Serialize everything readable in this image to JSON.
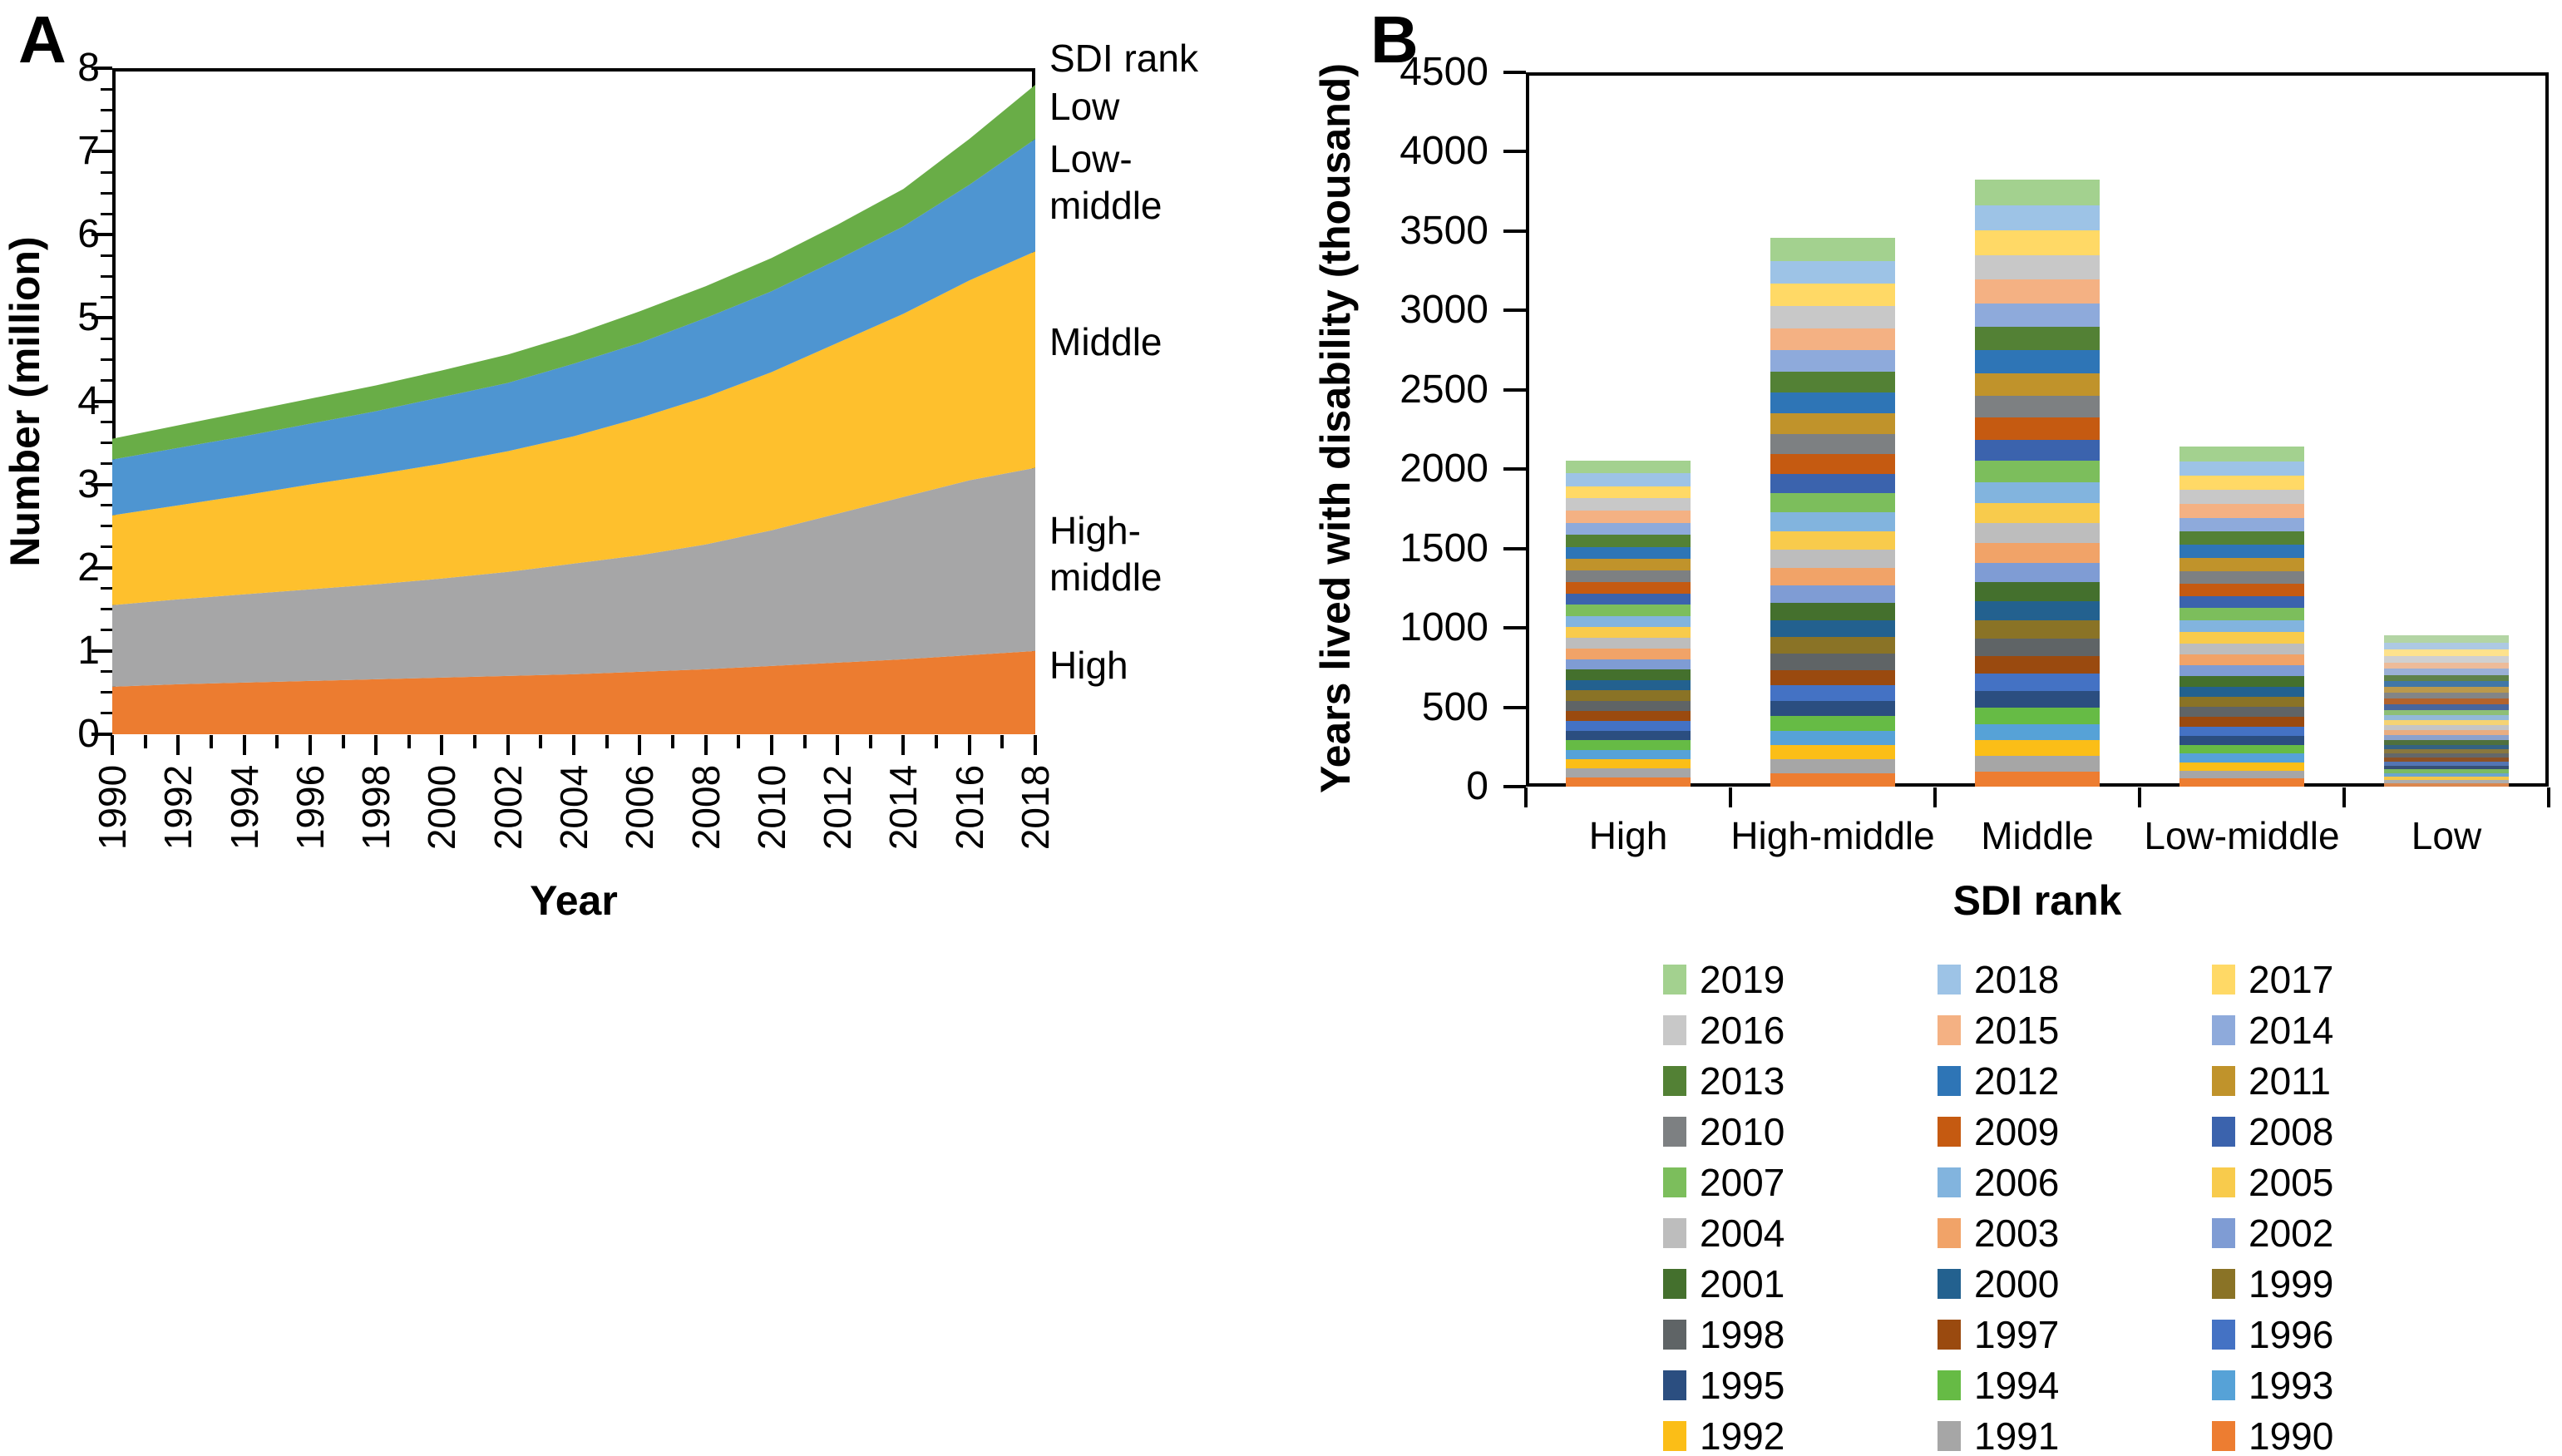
{
  "panel_a": {
    "label": "A",
    "y_axis": {
      "title": "Number (million)",
      "min": 0,
      "max": 8,
      "ticks": [
        "0",
        "1",
        "2",
        "3",
        "4",
        "5",
        "6",
        "7",
        "8"
      ],
      "minor_per_major": 4
    },
    "x_axis": {
      "title": "Year",
      "labels": [
        "1990",
        "1992",
        "1994",
        "1996",
        "1998",
        "2000",
        "2002",
        "2004",
        "2006",
        "2008",
        "2010",
        "2012",
        "2014",
        "2016",
        "2018"
      ],
      "min_year": 1990,
      "max_year": 2018
    },
    "right_labels": {
      "title": "SDI rank",
      "entries": [
        "Low",
        "Low-middle",
        "Middle",
        "High-middle",
        "High"
      ]
    },
    "chart_data": {
      "type": "area",
      "stacked": true,
      "x": [
        1990,
        1992,
        1994,
        1996,
        1998,
        2000,
        2002,
        2004,
        2006,
        2008,
        2010,
        2012,
        2014,
        2016,
        2018
      ],
      "series": [
        {
          "name": "High",
          "color": "#EC7C30",
          "values": [
            0.57,
            0.6,
            0.62,
            0.64,
            0.66,
            0.68,
            0.7,
            0.72,
            0.75,
            0.78,
            0.82,
            0.86,
            0.9,
            0.95,
            1.0
          ]
        },
        {
          "name": "High-middle",
          "color": "#A6A6A7",
          "values": [
            0.98,
            1.02,
            1.06,
            1.1,
            1.14,
            1.19,
            1.25,
            1.33,
            1.4,
            1.5,
            1.63,
            1.79,
            1.95,
            2.1,
            2.2
          ]
        },
        {
          "name": "Middle",
          "color": "#FEC02D",
          "values": [
            1.08,
            1.13,
            1.19,
            1.26,
            1.32,
            1.38,
            1.45,
            1.53,
            1.65,
            1.77,
            1.9,
            2.05,
            2.2,
            2.4,
            2.6
          ]
        },
        {
          "name": "Low-middle",
          "color": "#4E95D1",
          "values": [
            0.67,
            0.69,
            0.71,
            0.73,
            0.76,
            0.8,
            0.82,
            0.87,
            0.9,
            0.95,
            0.97,
            1.0,
            1.05,
            1.15,
            1.35
          ]
        },
        {
          "name": "Low",
          "color": "#69AD47",
          "values": [
            0.25,
            0.27,
            0.29,
            0.3,
            0.31,
            0.32,
            0.34,
            0.35,
            0.38,
            0.38,
            0.4,
            0.42,
            0.45,
            0.55,
            0.65
          ]
        }
      ],
      "xlabel": "Year",
      "ylabel": "Number (million)",
      "ylim": [
        0,
        8
      ]
    }
  },
  "panel_b": {
    "label": "B",
    "y_axis": {
      "title": "Years lived with disability (thousand)",
      "min": 0,
      "max": 4500,
      "ticks": [
        "0",
        "500",
        "1000",
        "1500",
        "2000",
        "2500",
        "3000",
        "3500",
        "4000",
        "4500"
      ]
    },
    "x_axis": {
      "title": "SDI rank",
      "categories": [
        "High",
        "High-middle",
        "Middle",
        "Low-middle",
        "Low"
      ]
    },
    "chart_data": {
      "type": "bar",
      "stacked": true,
      "categories": [
        "High",
        "High-middle",
        "Middle",
        "Low-middle",
        "Low"
      ],
      "years": [
        "1990",
        "1991",
        "1992",
        "1993",
        "1994",
        "1995",
        "1996",
        "1997",
        "1998",
        "1999",
        "2000",
        "2001",
        "2002",
        "2003",
        "2004",
        "2005",
        "2006",
        "2007",
        "2008",
        "2009",
        "2010",
        "2011",
        "2012",
        "2013",
        "2014",
        "2015",
        "2016",
        "2017",
        "2018",
        "2019"
      ],
      "palette": {
        "1990": "#ED7D31",
        "1991": "#A6A6A6",
        "1992": "#FBBE17",
        "1993": "#56A2D7",
        "1994": "#66BB45",
        "1995": "#2B4E80",
        "1996": "#4472C4",
        "1997": "#9A4A0F",
        "1998": "#5F6466",
        "1999": "#8A7326",
        "2000": "#23618F",
        "2001": "#44702D",
        "2002": "#7F9CD4",
        "2003": "#F1A368",
        "2004": "#BDBDBD",
        "2005": "#F8CB4C",
        "2006": "#82B4DE",
        "2007": "#7CBE5C",
        "2008": "#3B63AD",
        "2009": "#C55A11",
        "2010": "#7D8082",
        "2011": "#C0932B",
        "2012": "#2E75B6",
        "2013": "#538135",
        "2014": "#8EAADB",
        "2015": "#F4B183",
        "2016": "#C8C8C8",
        "2017": "#FFD966",
        "2018": "#9DC3E6",
        "2019": "#A3D18F"
      },
      "series": {
        "High": [
          57,
          58,
          59,
          59,
          60,
          61,
          62,
          63,
          63,
          64,
          65,
          66,
          66,
          67,
          68,
          69,
          70,
          70,
          71,
          72,
          73,
          74,
          74,
          75,
          76,
          77,
          78,
          78,
          79,
          80
        ],
        "High-middle": [
          85,
          87,
          89,
          91,
          93,
          95,
          97,
          99,
          102,
          104,
          106,
          108,
          110,
          112,
          114,
          116,
          119,
          121,
          123,
          125,
          127,
          129,
          131,
          133,
          135,
          137,
          140,
          142,
          144,
          145
        ],
        "Middle": [
          95,
          97,
          99,
          102,
          104,
          106,
          108,
          111,
          113,
          115,
          117,
          120,
          122,
          124,
          126,
          129,
          131,
          133,
          135,
          138,
          140,
          142,
          144,
          147,
          149,
          151,
          153,
          156,
          158,
          160
        ],
        "Low-middle": [
          50,
          51,
          53,
          54,
          56,
          57,
          59,
          60,
          62,
          63,
          65,
          66,
          68,
          69,
          71,
          72,
          74,
          75,
          77,
          78,
          80,
          81,
          83,
          84,
          86,
          87,
          89,
          90,
          92,
          93
        ],
        "Low": [
          20,
          21,
          22,
          22,
          23,
          24,
          25,
          26,
          27,
          27,
          28,
          29,
          30,
          31,
          31,
          32,
          33,
          34,
          35,
          35,
          36,
          37,
          38,
          39,
          39,
          40,
          41,
          42,
          43,
          44
        ]
      },
      "approx_totals": {
        "High": 2055,
        "High-middle": 3450,
        "Middle": 3830,
        "Low-middle": 2145,
        "Low": 960
      },
      "xlabel": "SDI rank",
      "ylabel": "Years lived with disability (thousand)",
      "ylim": [
        0,
        4500
      ]
    },
    "legend": {
      "order": [
        "2019",
        "2018",
        "2017",
        "2016",
        "2015",
        "2014",
        "2013",
        "2012",
        "2011",
        "2010",
        "2009",
        "2008",
        "2007",
        "2006",
        "2005",
        "2004",
        "2003",
        "2002",
        "2001",
        "2000",
        "1999",
        "1998",
        "1997",
        "1996",
        "1995",
        "1994",
        "1993",
        "1992",
        "1991",
        "1990"
      ]
    }
  }
}
